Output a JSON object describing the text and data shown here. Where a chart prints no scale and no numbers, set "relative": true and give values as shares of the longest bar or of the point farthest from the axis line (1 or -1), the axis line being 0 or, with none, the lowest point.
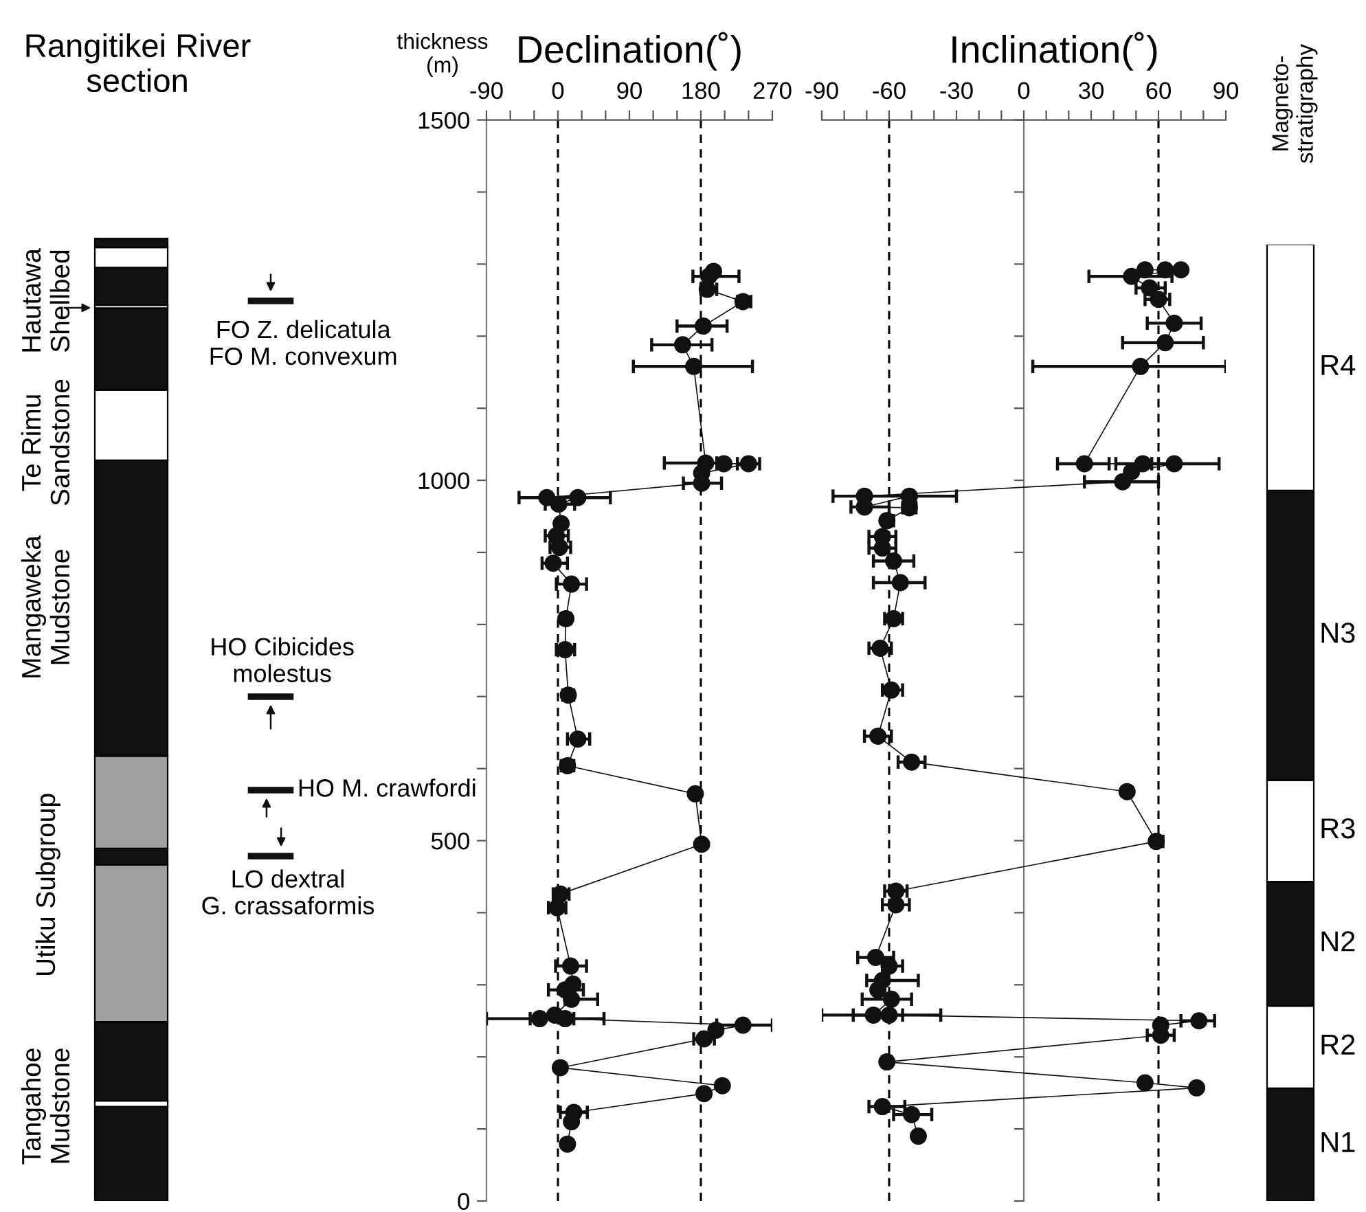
{
  "chart_data": [
    {
      "type": "bar",
      "stacked": true,
      "relative": true,
      "title": "Rangitikei River\nsection",
      "categories": [
        null
      ],
      "tick_labels": false,
      "legend": false,
      "series": [
        {
          "color": "#111111",
          "values": [
            0.098
          ]
        },
        {
          "color": "#ffffff",
          "values": [
            0.006
          ]
        },
        {
          "color": "#111111",
          "values": [
            0.082
          ]
        },
        {
          "color": "#a0a0a0",
          "values": [
            0.163
          ]
        },
        {
          "color": "#111111",
          "values": [
            0.017
          ]
        },
        {
          "color": "#a0a0a0",
          "values": [
            0.096
          ]
        },
        {
          "color": "#111111",
          "values": [
            0.307
          ]
        },
        {
          "color": "#ffffff",
          "values": [
            0.073
          ]
        },
        {
          "color": "#111111",
          "values": [
            0.085
          ]
        },
        {
          "color": "#ffffff",
          "values": [
            0.003
          ]
        },
        {
          "color": "#111111",
          "values": [
            0.039
          ]
        },
        {
          "color": "#ffffff",
          "values": [
            0.021
          ]
        },
        {
          "color": "#111111",
          "values": [
            0.01
          ]
        }
      ],
      "annotations": [
        "Hautawa\nShellbed",
        "Te Rimu\nSandstone",
        "Mangaweka\nMudstone",
        "Utiku Subgroup",
        "Tangahoe\nMudstone",
        "FO Z. delicatula\nFO M. convexum",
        "HO Cibicides\nmolestus",
        "HO M. crawfordi",
        "LO dextral\nG. crassaformis"
      ]
    },
    {
      "type": "line",
      "title": "Declination(˚)",
      "ylabel": "thickness\n(m)",
      "marker": "circle",
      "line_style": "solid",
      "grid": false,
      "legend": false,
      "xlim": [
        -90,
        270
      ],
      "xticks": [
        -90,
        {
          "value": -60,
          "label": null
        },
        {
          "value": -30,
          "label": null
        },
        0,
        {
          "value": 30,
          "label": null
        },
        {
          "value": 60,
          "label": null
        },
        90,
        {
          "value": 120,
          "label": null
        },
        {
          "value": 150,
          "label": null
        },
        180,
        {
          "value": 210,
          "label": null
        },
        {
          "value": 240,
          "label": null
        },
        270
      ],
      "ylim": [
        0,
        1500
      ],
      "yticks": [
        0,
        {
          "value": 100,
          "label": null
        },
        {
          "value": 200,
          "label": null
        },
        {
          "value": 300,
          "label": null
        },
        {
          "value": 400,
          "label": null
        },
        500,
        {
          "value": 600,
          "label": null
        },
        {
          "value": 700,
          "label": null
        },
        {
          "value": 800,
          "label": null
        },
        {
          "value": 900,
          "label": null
        },
        1000,
        {
          "value": 1100,
          "label": null
        },
        {
          "value": 1200,
          "label": null
        },
        {
          "value": 1300,
          "label": null
        },
        {
          "value": 1400,
          "label": null
        },
        1500
      ],
      "ref_lines": [
        {
          "axis": "x",
          "value": 0,
          "line_style": "dashed",
          "color": "#000000"
        },
        {
          "axis": "x",
          "value": 180,
          "line_style": "dashed",
          "color": "#000000"
        }
      ],
      "series": [
        {
          "color": "#111111",
          "x": [
            null,
            196,
            190,
            188,
            233,
            183,
            157,
            171,
            186,
            209,
            240,
            181,
            181,
            -14,
            25,
            1,
            4,
            -2,
            2,
            -6,
            17,
            10,
            9,
            13,
            25,
            12,
            173,
            181,
            3,
            -1,
            16,
            19,
            9,
            17,
            -4,
            -23,
            9,
            233,
            199,
            184,
            3,
            207,
            184,
            20,
            17,
            12
          ],
          "values": [
            null,
            1290,
            1283,
            1265,
            1248,
            1214,
            1188,
            1158,
            1024,
            1023,
            1023,
            1010,
            996,
            976,
            976,
            967,
            940,
            923,
            907,
            885,
            856,
            808,
            765,
            702,
            641,
            604,
            565,
            495,
            426,
            407,
            326,
            301,
            293,
            280,
            258,
            253,
            253,
            244,
            237,
            225,
            185,
            160,
            149,
            123,
            110,
            79
          ],
          "xerrors": [
            null,
            null,
            [
              170,
              228
            ],
            [
              180,
              200
            ],
            [
              226,
              243
            ],
            [
              150,
              213
            ],
            [
              118,
              194
            ],
            [
              95,
              245
            ],
            [
              134,
              200
            ],
            null,
            [
              226,
              254
            ],
            null,
            [
              158,
              206
            ],
            null,
            [
              -49,
              66
            ],
            [
              -16,
              21
            ],
            null,
            [
              -16,
              13
            ],
            [
              -10,
              16
            ],
            [
              -20,
              12
            ],
            [
              -2,
              36
            ],
            [
              4,
              16
            ],
            [
              -2,
              21
            ],
            [
              6,
              20
            ],
            [
              12,
              40
            ],
            [
              4,
              20
            ],
            null,
            [
              177,
              185
            ],
            [
              -6,
              14
            ],
            [
              -12,
              10
            ],
            [
              -3,
              36
            ],
            null,
            [
              -12,
              32
            ],
            [
              9,
              50
            ],
            null,
            [
              -90,
              20
            ],
            [
              -35,
              58
            ],
            [
              200,
              270
            ],
            null,
            [
              171,
              197
            ],
            [
              -2,
              8
            ],
            null,
            null,
            [
              3,
              37
            ],
            null,
            null
          ]
        }
      ]
    },
    {
      "type": "line",
      "title": "Inclination(˚)",
      "marker": "circle",
      "line_style": "solid",
      "grid": false,
      "legend": false,
      "tick_labels": "x",
      "xlim": [
        -90,
        90
      ],
      "xticks": [
        -90,
        {
          "value": -80,
          "label": null
        },
        {
          "value": -70,
          "label": null
        },
        -60,
        {
          "value": -50,
          "label": null
        },
        {
          "value": -40,
          "label": null
        },
        -30,
        {
          "value": -20,
          "label": null
        },
        {
          "value": -10,
          "label": null
        },
        0,
        {
          "value": 10,
          "label": null
        },
        {
          "value": 20,
          "label": null
        },
        30,
        {
          "value": 40,
          "label": null
        },
        {
          "value": 50,
          "label": null
        },
        60,
        {
          "value": 70,
          "label": null
        },
        {
          "value": 80,
          "label": null
        },
        90
      ],
      "ylim": [
        0,
        1500
      ],
      "yticks": [
        {
          "value": 0,
          "label": null
        },
        {
          "value": 100,
          "label": null
        },
        {
          "value": 200,
          "label": null
        },
        {
          "value": 300,
          "label": null
        },
        {
          "value": 400,
          "label": null
        },
        {
          "value": 500,
          "label": null
        },
        {
          "value": 600,
          "label": null
        },
        {
          "value": 700,
          "label": null
        },
        {
          "value": 800,
          "label": null
        },
        {
          "value": 900,
          "label": null
        },
        {
          "value": 1000,
          "label": null
        },
        {
          "value": 1100,
          "label": null
        },
        {
          "value": 1200,
          "label": null
        },
        {
          "value": 1300,
          "label": null
        },
        {
          "value": 1400,
          "label": null
        },
        {
          "value": 1500,
          "label": null
        }
      ],
      "ref_lines": [
        {
          "axis": "x",
          "value": -60,
          "line_style": "dashed",
          "color": "#000000"
        },
        {
          "axis": "x",
          "value": 60,
          "line_style": "dashed",
          "color": "#000000"
        }
      ],
      "series": [
        {
          "color": "#111111",
          "x": [
            54,
            63,
            70,
            48,
            56,
            60,
            67,
            63,
            52,
            27,
            53,
            67,
            48,
            44,
            -71,
            -51,
            -71,
            -51,
            -61,
            -63,
            -63,
            -58,
            -55,
            -58,
            -64,
            -59,
            -65,
            -50,
            46,
            59,
            -57,
            -57,
            -66,
            -60,
            -63,
            -65,
            -59,
            -67,
            -60,
            78,
            61,
            61,
            -61,
            54,
            77,
            -63,
            -50,
            -47
          ],
          "values": [
            1292,
            1292,
            1292,
            1283,
            1267,
            1251,
            1218,
            1191,
            1158,
            1023,
            1023,
            1023,
            1012,
            998,
            978,
            978,
            963,
            962,
            944,
            922,
            906,
            888,
            858,
            808,
            767,
            709,
            645,
            609,
            568,
            499,
            430,
            411,
            338,
            326,
            306,
            293,
            280,
            258,
            258,
            250,
            244,
            230,
            193,
            164,
            157,
            131,
            120,
            90
          ],
          "xerrors": [
            null,
            null,
            null,
            [
              29,
              66
            ],
            [
              50,
              63
            ],
            [
              54,
              65
            ],
            [
              55,
              79
            ],
            [
              44,
              80
            ],
            [
              4,
              90
            ],
            [
              15,
              38
            ],
            [
              41,
              60
            ],
            [
              57,
              87
            ],
            null,
            [
              27,
              60
            ],
            null,
            [
              -85,
              -30
            ],
            [
              -77,
              -60
            ],
            [
              -54,
              -48
            ],
            [
              -63,
              -58
            ],
            [
              -69,
              -57
            ],
            [
              -69,
              -57
            ],
            [
              -67,
              -49
            ],
            [
              -67,
              -44
            ],
            [
              -62,
              -54
            ],
            [
              -69,
              -59
            ],
            [
              -63,
              -54
            ],
            [
              -71,
              -59
            ],
            [
              -56,
              -44
            ],
            null,
            [
              57,
              62
            ],
            [
              -62,
              -52
            ],
            [
              -63,
              -51
            ],
            [
              -74,
              -58
            ],
            [
              -63,
              -54
            ],
            [
              -70,
              -47
            ],
            null,
            [
              -72,
              -50
            ],
            [
              -90,
              -54
            ],
            [
              -76,
              -37
            ],
            [
              70,
              85
            ],
            null,
            [
              55,
              67
            ],
            [
              -63,
              -59
            ],
            null,
            null,
            [
              -69,
              -53
            ],
            [
              -58,
              -41
            ],
            null
          ]
        }
      ]
    },
    {
      "type": "bar",
      "stacked": true,
      "relative": true,
      "title": "Magneto-\nstratigraphy",
      "categories": [
        null
      ],
      "tick_labels": false,
      "legend": false,
      "series": [
        {
          "name": "N1",
          "color": "#111111",
          "values": [
            0.118
          ]
        },
        {
          "name": "R2",
          "color": "#ffffff",
          "values": [
            0.086
          ]
        },
        {
          "name": "N2",
          "color": "#111111",
          "values": [
            0.13
          ]
        },
        {
          "name": "R3",
          "color": "#ffffff",
          "values": [
            0.106
          ]
        },
        {
          "name": "N3",
          "color": "#111111",
          "values": [
            0.303
          ]
        },
        {
          "name": "R4",
          "color": "#ffffff",
          "values": [
            0.257
          ]
        }
      ]
    }
  ]
}
